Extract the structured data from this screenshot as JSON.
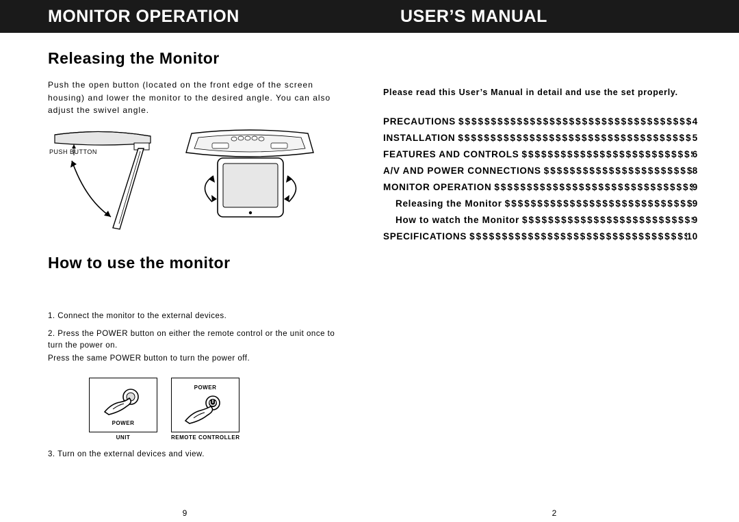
{
  "header": {
    "left": "MONITOR OPERATION",
    "right": "USER’S MANUAL"
  },
  "left": {
    "section1_title": "Releasing the Monitor",
    "section1_body": "Push the open button (located on the front edge of the screen housing) and lower the monitor to the desired angle. You can also adjust the swivel angle.",
    "push_button_label": "PUSH BUTTON",
    "section2_title": "How to use the monitor",
    "step1": "1. Connect the monitor to the external devices.",
    "step2a": "2. Press the POWER button on either the remote control or the unit once to turn the power on.",
    "step2b": "Press the same POWER button to turn the power off.",
    "power_label": "POWER",
    "unit_label": "UNIT",
    "remote_label": "REMOTE CONTROLLER",
    "step3": "3. Turn on the external devices and view.",
    "pagenum": "9"
  },
  "right": {
    "intro": "Please read this User’s Manual in detail and use the set properly.",
    "fill_char": "$",
    "toc": [
      {
        "label": "PRECAUTIONS",
        "page": "4",
        "sub": false
      },
      {
        "label": "INSTALLATION",
        "page": "5",
        "sub": false
      },
      {
        "label": "FEATURES AND CONTROLS",
        "page": "6",
        "sub": false
      },
      {
        "label": "A/V AND POWER CONNECTIONS",
        "page": "8",
        "sub": false
      },
      {
        "label": "MONITOR OPERATION",
        "page": "9",
        "sub": false
      },
      {
        "label": "Releasing the Monitor",
        "page": "9",
        "sub": true
      },
      {
        "label": "How  to  watch  the  Monitor",
        "page": "9",
        "sub": true
      },
      {
        "label": "SPECIFICATIONS",
        "page": "10",
        "sub": false
      }
    ],
    "pagenum": "2"
  },
  "colors": {
    "header_bg": "#1a1a1a",
    "header_fg": "#ffffff",
    "page_bg": "#ffffff",
    "text": "#000000"
  }
}
